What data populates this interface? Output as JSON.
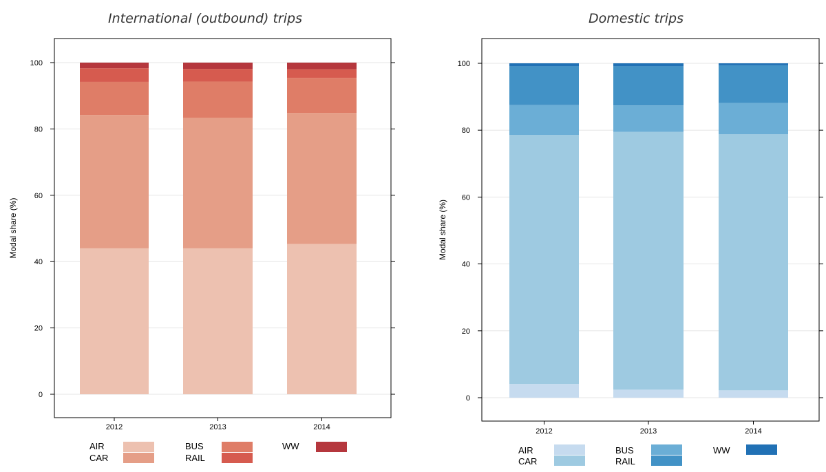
{
  "chart_data": [
    {
      "type": "bar",
      "stacked": true,
      "title": "International (outbound) trips",
      "ylabel": "Modal share (%)",
      "xlabel": "",
      "ylim": [
        0,
        105
      ],
      "yticks": [
        0,
        20,
        40,
        60,
        80,
        100
      ],
      "grid": true,
      "legend_position": "bottom",
      "categories": [
        "2012",
        "2013",
        "2014"
      ],
      "series": [
        {
          "name": "AIR",
          "color": "#edc1b0",
          "values": [
            44.0,
            44.0,
            45.3
          ]
        },
        {
          "name": "CAR",
          "color": "#e59e87",
          "values": [
            40.2,
            39.4,
            39.5
          ]
        },
        {
          "name": "BUS",
          "color": "#df7d67",
          "values": [
            10.0,
            10.9,
            10.6
          ]
        },
        {
          "name": "RAIL",
          "color": "#d65b4f",
          "values": [
            4.1,
            3.8,
            2.6
          ]
        },
        {
          "name": "WW",
          "color": "#b5373d",
          "values": [
            1.7,
            1.9,
            2.0
          ]
        }
      ]
    },
    {
      "type": "bar",
      "stacked": true,
      "title": "Domestic trips",
      "ylabel": "Modal share (%)",
      "xlabel": "",
      "ylim": [
        0,
        105
      ],
      "yticks": [
        0,
        20,
        40,
        60,
        80,
        100
      ],
      "grid": true,
      "legend_position": "bottom",
      "categories": [
        "2012",
        "2013",
        "2014"
      ],
      "series": [
        {
          "name": "AIR",
          "color": "#c6dbef",
          "values": [
            4.1,
            2.4,
            2.2
          ]
        },
        {
          "name": "CAR",
          "color": "#9ecae1",
          "values": [
            74.5,
            77.1,
            76.6
          ]
        },
        {
          "name": "BUS",
          "color": "#6baed6",
          "values": [
            8.9,
            7.9,
            9.3
          ]
        },
        {
          "name": "RAIL",
          "color": "#4292c6",
          "values": [
            11.6,
            11.7,
            11.3
          ]
        },
        {
          "name": "WW",
          "color": "#2171b5",
          "values": [
            0.9,
            0.9,
            0.6
          ]
        }
      ]
    }
  ]
}
